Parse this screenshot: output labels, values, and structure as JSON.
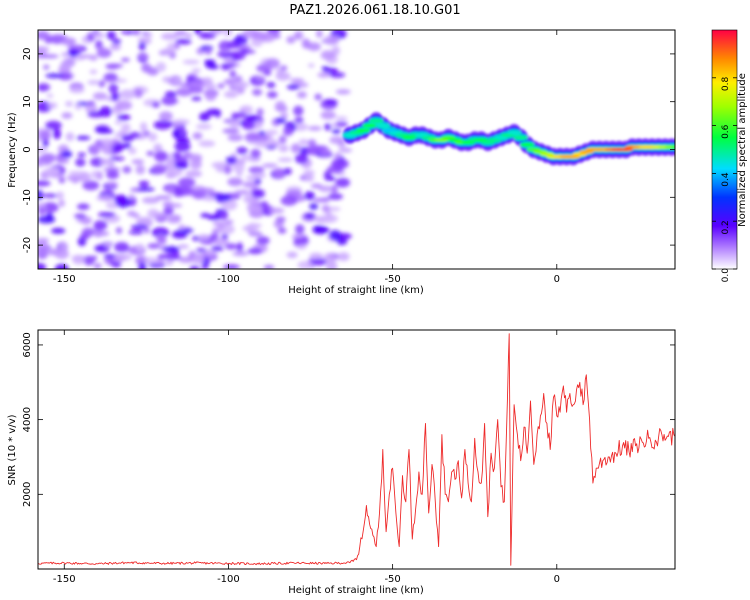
{
  "title": "PAZ1.2026.061.18.10.G01",
  "chart_data": [
    {
      "type": "heatmap",
      "xlabel": "Height of straight line (km)",
      "ylabel": "Frequency (Hz)",
      "xlim": [
        -158,
        36
      ],
      "ylim": [
        -25,
        25
      ],
      "x_ticks": [
        -150,
        -100,
        -50,
        0
      ],
      "y_ticks": [
        -20,
        -10,
        0,
        10,
        20
      ],
      "noise_region_x": [
        -158,
        -64
      ],
      "signal_ridge": {
        "x": [
          -64,
          -62,
          -60,
          -58,
          -56,
          -54,
          -52,
          -50,
          -48,
          -46,
          -44,
          -42,
          -40,
          -38,
          -36,
          -34,
          -32,
          -30,
          -28,
          -26,
          -24,
          -22,
          -20,
          -18,
          -16,
          -14,
          -12,
          -10,
          -8,
          -6,
          -4,
          -2,
          0,
          2,
          4,
          6,
          8,
          10,
          12,
          14,
          16,
          18,
          20,
          22,
          24,
          26,
          28,
          30,
          32,
          34,
          36
        ],
        "freq": [
          3,
          3.5,
          4,
          5,
          6,
          5,
          4,
          3.5,
          3,
          2.5,
          3,
          3,
          2.5,
          2,
          2,
          2.5,
          2,
          1.5,
          1.5,
          2,
          2,
          1.5,
          2,
          2.5,
          3,
          3.5,
          2.5,
          1,
          0,
          -0.5,
          -1,
          -1.5,
          -1.5,
          -1.5,
          -1.5,
          -1,
          -0.5,
          0,
          0,
          0,
          0,
          0,
          0,
          0.5,
          0.5,
          0.5,
          0.5,
          0.5,
          0.5,
          0.5,
          0.5
        ],
        "amplitude": [
          0.45,
          0.5,
          0.55,
          0.55,
          0.5,
          0.45,
          0.4,
          0.45,
          0.5,
          0.55,
          0.5,
          0.45,
          0.5,
          0.6,
          0.65,
          0.6,
          0.55,
          0.6,
          0.55,
          0.5,
          0.55,
          0.5,
          0.5,
          0.45,
          0.5,
          0.45,
          0.5,
          0.55,
          0.6,
          0.65,
          0.7,
          0.75,
          0.8,
          0.85,
          0.85,
          0.8,
          0.85,
          0.85,
          0.85,
          0.85,
          0.9,
          0.95,
          0.95,
          0.9,
          0.85,
          0.8,
          0.8,
          0.75,
          0.7,
          0.65,
          0.6
        ]
      }
    },
    {
      "type": "colorbar",
      "label": "Normalized spectral amplitude",
      "range": [
        0,
        1
      ],
      "ticks": [
        "0.0",
        "0.2",
        "0.4",
        "0.6",
        "0.8"
      ],
      "tick_values": [
        0,
        0.2,
        0.4,
        0.6,
        0.8
      ]
    },
    {
      "type": "line",
      "xlabel": "Height of straight line (km)",
      "ylabel": "SNR (10 * v/v)",
      "xlim": [
        -158,
        36
      ],
      "ylim": [
        0,
        6400
      ],
      "x_ticks": [
        -150,
        -100,
        -50,
        0
      ],
      "y_ticks": [
        2000,
        4000,
        6000
      ],
      "color": "#ee2a2a",
      "series": [
        {
          "name": "SNR",
          "x": [
            -158,
            -150,
            -140,
            -130,
            -120,
            -110,
            -100,
            -90,
            -80,
            -70,
            -63,
            -61,
            -60,
            -59,
            -58,
            -57,
            -56,
            -55,
            -54,
            -53,
            -52,
            -51,
            -50,
            -49,
            -48,
            -47,
            -46,
            -45,
            -44,
            -43,
            -42,
            -41,
            -40,
            -39,
            -38,
            -37,
            -36,
            -35,
            -34,
            -33,
            -32,
            -31,
            -30,
            -29,
            -28,
            -27,
            -26,
            -25,
            -24,
            -23,
            -22,
            -21,
            -20,
            -19,
            -18,
            -17,
            -16,
            -15,
            -14.5,
            -14,
            -13,
            -12,
            -11,
            -10,
            -9,
            -8,
            -7,
            -6,
            -5,
            -4,
            -3,
            -2,
            -1,
            0,
            1,
            2,
            3,
            4,
            5,
            6,
            7,
            8,
            9,
            10,
            11,
            12,
            14,
            16,
            18,
            20,
            22,
            24,
            26,
            28,
            30,
            32,
            34,
            36
          ],
          "values": [
            150,
            160,
            140,
            170,
            150,
            160,
            150,
            140,
            160,
            150,
            170,
            250,
            600,
            1000,
            1700,
            1200,
            900,
            600,
            1500,
            3200,
            1000,
            2000,
            2700,
            1500,
            600,
            2500,
            1800,
            3200,
            800,
            1600,
            2600,
            2000,
            3900,
            1500,
            2800,
            1800,
            600,
            3600,
            2000,
            1800,
            2600,
            2400,
            2900,
            1900,
            3200,
            2300,
            1800,
            3500,
            2600,
            2300,
            3900,
            1400,
            3100,
            2700,
            4000,
            2200,
            1800,
            4600,
            6300,
            100,
            4400,
            3600,
            2900,
            3800,
            3100,
            4500,
            2800,
            3600,
            4100,
            4700,
            3900,
            3200,
            4600,
            4100,
            4200,
            4900,
            4200,
            4700,
            4400,
            4800,
            5000,
            4400,
            5200,
            4000,
            2300,
            2700,
            2900,
            3000,
            3100,
            3300,
            3150,
            3300,
            3400,
            3500,
            3450,
            3600,
            3550,
            3550
          ]
        }
      ]
    }
  ]
}
